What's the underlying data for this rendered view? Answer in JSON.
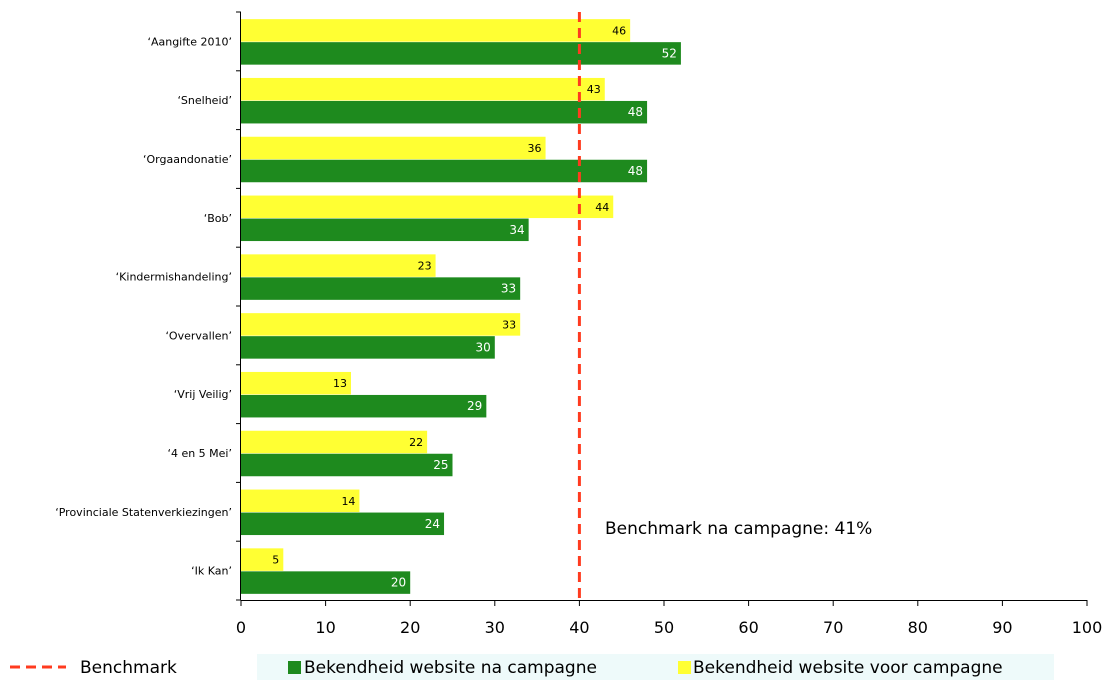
{
  "chart_data": {
    "type": "bar",
    "orientation": "horizontal",
    "categories": [
      "‘Aangifte 2010’",
      "‘Snelheid’",
      "‘Orgaandonatie’",
      "‘Bob’",
      "‘Kindermishandeling’",
      "‘Overvallen’",
      "‘Vrij Veilig’",
      "‘4 en 5 Mei’",
      "‘Provinciale Statenverkiezingen’",
      "‘Ik Kan’"
    ],
    "series": [
      {
        "name": "Bekendheid website voor campagne",
        "color": "#ffff33",
        "values": [
          46,
          43,
          36,
          44,
          23,
          33,
          13,
          22,
          14,
          5
        ]
      },
      {
        "name": "Bekendheid website na campagne",
        "color": "#1e8a1e",
        "values": [
          52,
          48,
          48,
          34,
          33,
          30,
          29,
          25,
          24,
          20
        ]
      }
    ],
    "xlim": [
      0,
      100
    ],
    "xticks": [
      "0",
      "10",
      "20",
      "30",
      "40",
      "50",
      "60",
      "70",
      "80",
      "90",
      "100"
    ],
    "benchmark": {
      "value": 40,
      "label": "Benchmark",
      "color": "#ff3b1f"
    },
    "annotation": "Benchmark na campagne: 41%",
    "grid": false,
    "legend_placement": "bottom"
  }
}
